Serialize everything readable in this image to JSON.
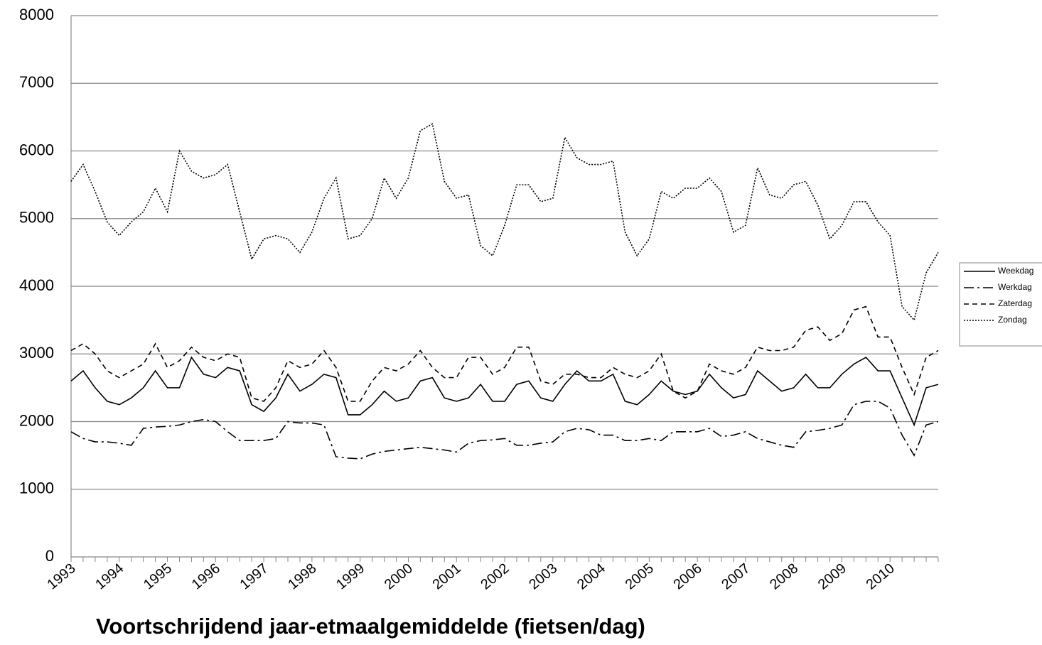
{
  "chart_data": {
    "type": "line",
    "title": "Voortschrijdend jaar-etmaalgemiddelde (fietsen/dag)",
    "categories": [
      "1993",
      null,
      null,
      null,
      "1994",
      null,
      null,
      null,
      "1995",
      null,
      null,
      null,
      "1996",
      null,
      null,
      null,
      "1997",
      null,
      null,
      null,
      "1998",
      null,
      null,
      null,
      "1999",
      null,
      null,
      null,
      "2000",
      null,
      null,
      null,
      "2001",
      null,
      null,
      null,
      "2002",
      null,
      null,
      null,
      "2003",
      null,
      null,
      null,
      "2004",
      null,
      null,
      null,
      "2005",
      null,
      null,
      null,
      "2006",
      null,
      null,
      null,
      "2007",
      null,
      null,
      null,
      "2008",
      null,
      null,
      null,
      "2009",
      null,
      null,
      null,
      "2010",
      null,
      null,
      null,
      null
    ],
    "ylim": [
      0,
      8000
    ],
    "yticks": [
      0,
      1000,
      2000,
      3000,
      4000,
      5000,
      6000,
      7000,
      8000
    ],
    "grid": true,
    "legend": "right",
    "series": [
      {
        "name": "Weekdag",
        "color": "#000000",
        "dash": "solid",
        "values": [
          2600,
          2750,
          2500,
          2300,
          2250,
          2350,
          2500,
          2750,
          2500,
          2500,
          2950,
          2700,
          2650,
          2800,
          2750,
          2250,
          2150,
          2350,
          2700,
          2450,
          2550,
          2700,
          2650,
          2100,
          2100,
          2250,
          2450,
          2300,
          2350,
          2600,
          2650,
          2350,
          2300,
          2350,
          2550,
          2300,
          2300,
          2550,
          2600,
          2350,
          2300,
          2550,
          2750,
          2600,
          2600,
          2700,
          2300,
          2250,
          2400,
          2600,
          2450,
          2400,
          2450,
          2700,
          2500,
          2350,
          2400,
          2750,
          2600,
          2450,
          2500,
          2700,
          2500,
          2500,
          2700,
          2850,
          2950,
          2750,
          2750,
          2350,
          1950,
          2500,
          2550
        ]
      },
      {
        "name": "Werkdag",
        "color": "#000000",
        "dash": "dashdot",
        "values": [
          1850,
          1750,
          1700,
          1700,
          1680,
          1650,
          1900,
          1920,
          1930,
          1950,
          2000,
          2030,
          2000,
          1850,
          1720,
          1720,
          1720,
          1750,
          2000,
          1980,
          1980,
          1950,
          1480,
          1460,
          1450,
          1520,
          1560,
          1580,
          1600,
          1620,
          1600,
          1580,
          1550,
          1680,
          1720,
          1730,
          1750,
          1650,
          1650,
          1680,
          1700,
          1850,
          1900,
          1880,
          1800,
          1800,
          1720,
          1720,
          1750,
          1720,
          1850,
          1850,
          1850,
          1900,
          1780,
          1800,
          1850,
          1750,
          1700,
          1650,
          1620,
          1850,
          1870,
          1900,
          1950,
          2250,
          2300,
          2300,
          2200,
          1800,
          1500,
          1950,
          2000
        ]
      },
      {
        "name": "Zaterdag",
        "color": "#000000",
        "dash": "dashed",
        "values": [
          3050,
          3150,
          3000,
          2750,
          2650,
          2750,
          2850,
          3150,
          2800,
          2900,
          3100,
          2950,
          2900,
          3000,
          2950,
          2350,
          2300,
          2500,
          2900,
          2800,
          2850,
          3050,
          2800,
          2300,
          2300,
          2600,
          2800,
          2750,
          2850,
          3050,
          2800,
          2650,
          2650,
          2950,
          2950,
          2700,
          2800,
          3100,
          3100,
          2600,
          2550,
          2700,
          2700,
          2650,
          2650,
          2800,
          2700,
          2650,
          2750,
          3000,
          2450,
          2350,
          2450,
          2850,
          2750,
          2700,
          2800,
          3100,
          3050,
          3050,
          3100,
          3350,
          3400,
          3200,
          3300,
          3650,
          3700,
          3250,
          3250,
          2800,
          2400,
          2950,
          3050
        ]
      },
      {
        "name": "Zondag",
        "color": "#000000",
        "dash": "dotted",
        "values": [
          5550,
          5800,
          5400,
          4950,
          4750,
          4950,
          5100,
          5450,
          5100,
          6000,
          5700,
          5600,
          5650,
          5800,
          5100,
          4400,
          4700,
          4750,
          4700,
          4500,
          4800,
          5300,
          5600,
          4700,
          4750,
          5000,
          5600,
          5300,
          5600,
          6300,
          6400,
          5550,
          5300,
          5350,
          4600,
          4450,
          4900,
          5500,
          5500,
          5250,
          5300,
          6200,
          5900,
          5800,
          5800,
          5850,
          4800,
          4450,
          4700,
          5400,
          5300,
          5450,
          5450,
          5600,
          5400,
          4800,
          4900,
          5750,
          5350,
          5300,
          5500,
          5550,
          5200,
          4700,
          4900,
          5250,
          5250,
          4950,
          4750,
          3700,
          3500,
          4200,
          4500
        ]
      }
    ]
  }
}
